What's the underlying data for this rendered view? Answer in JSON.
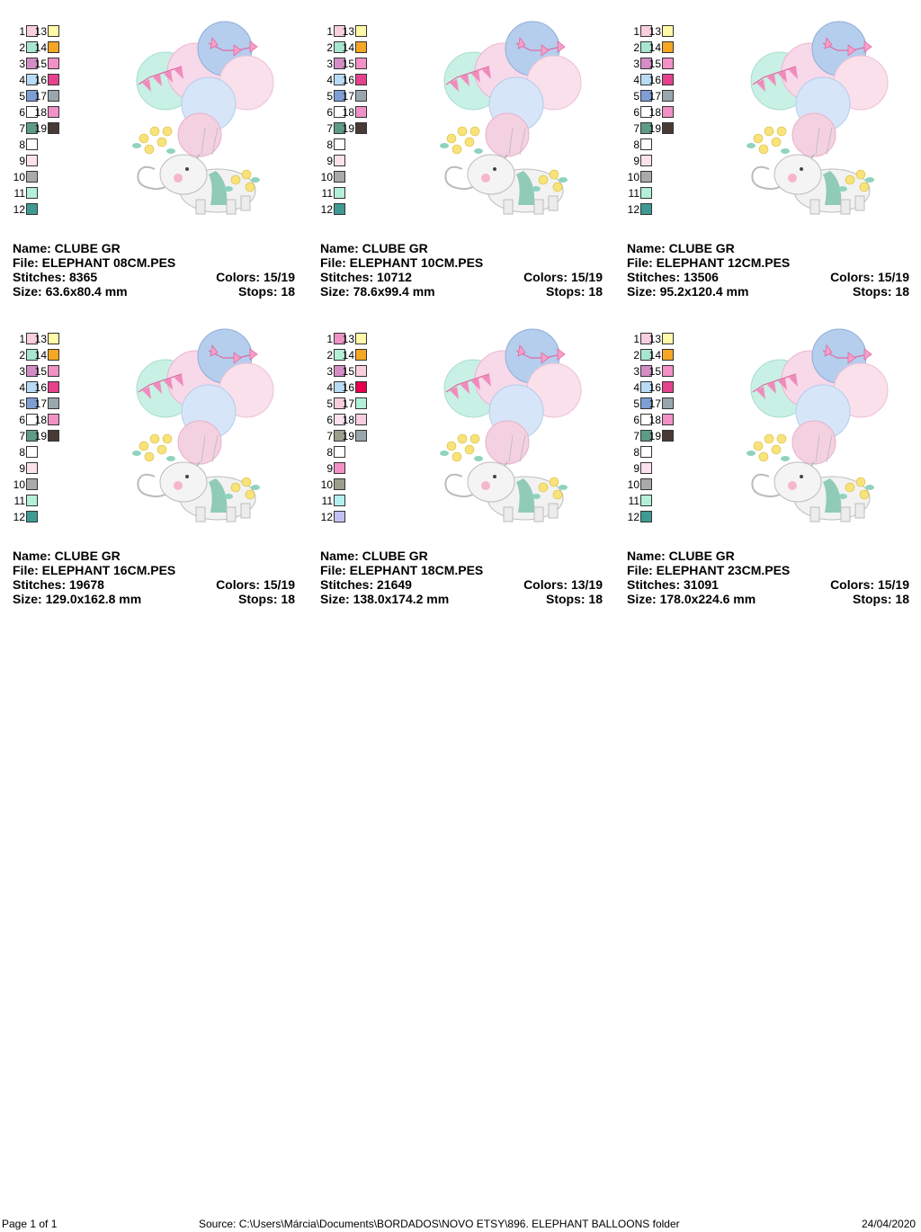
{
  "palette_numbers": [
    "1",
    "2",
    "3",
    "4",
    "5",
    "6",
    "7",
    "8",
    "9",
    "10",
    "11",
    "12",
    "13",
    "14",
    "15",
    "16",
    "17",
    "18",
    "19"
  ],
  "designs": [
    {
      "name_label": "Name: CLUBE GR",
      "file_label": "File: ELEPHANT 08CM.PES",
      "stitches_label": "Stitches: 8365",
      "colors_label": "Colors: 15/19",
      "size_label": "Size: 63.6x80.4 mm",
      "stops_label": "Stops: 18",
      "swatches": [
        "#f9cfe0",
        "#a8e6d4",
        "#d58dc6",
        "#b8dcf5",
        "#7e9fd6",
        "#ffffff",
        "#5e9c86",
        "#ffffff",
        "#fde2ee",
        "#aaaaaa",
        "#b3f0d8",
        "#3d9b93",
        "#fff9a8",
        "#f5a623",
        "#f291c6",
        "#e6418d",
        "#9aa6ad",
        "#f291c6",
        "#4a3a36"
      ]
    },
    {
      "name_label": "Name: CLUBE GR",
      "file_label": "File: ELEPHANT 10CM.PES",
      "stitches_label": "Stitches: 10712",
      "colors_label": "Colors: 15/19",
      "size_label": "Size: 78.6x99.4 mm",
      "stops_label": "Stops: 18",
      "swatches": [
        "#f9cfe0",
        "#a8e6d4",
        "#d58dc6",
        "#b8dcf5",
        "#7e9fd6",
        "#ffffff",
        "#5e9c86",
        "#ffffff",
        "#fde2ee",
        "#aaaaaa",
        "#b3f0d8",
        "#3d9b93",
        "#fff9a8",
        "#f5a623",
        "#f291c6",
        "#e6418d",
        "#9aa6ad",
        "#f291c6",
        "#4a3a36"
      ]
    },
    {
      "name_label": "Name: CLUBE GR",
      "file_label": "File: ELEPHANT 12CM.PES",
      "stitches_label": "Stitches: 13506",
      "colors_label": "Colors: 15/19",
      "size_label": "Size: 95.2x120.4 mm",
      "stops_label": "Stops: 18",
      "swatches": [
        "#f9cfe0",
        "#a8e6d4",
        "#d58dc6",
        "#b8dcf5",
        "#7e9fd6",
        "#ffffff",
        "#5e9c86",
        "#ffffff",
        "#fde2ee",
        "#aaaaaa",
        "#b3f0d8",
        "#3d9b93",
        "#fff9a8",
        "#f5a623",
        "#f291c6",
        "#e6418d",
        "#9aa6ad",
        "#f291c6",
        "#4a3a36"
      ]
    },
    {
      "name_label": "Name: CLUBE GR",
      "file_label": "File: ELEPHANT 16CM.PES",
      "stitches_label": "Stitches: 19678",
      "colors_label": "Colors: 15/19",
      "size_label": "Size: 129.0x162.8 mm",
      "stops_label": "Stops: 18",
      "swatches": [
        "#f9cfe0",
        "#a8e6d4",
        "#d58dc6",
        "#b8dcf5",
        "#7e9fd6",
        "#ffffff",
        "#5e9c86",
        "#ffffff",
        "#fde2ee",
        "#aaaaaa",
        "#b3f0d8",
        "#3d9b93",
        "#fff9a8",
        "#f5a623",
        "#f291c6",
        "#e6418d",
        "#9aa6ad",
        "#f291c6",
        "#4a3a36"
      ]
    },
    {
      "name_label": "Name: CLUBE GR",
      "file_label": "File: ELEPHANT 18CM.PES",
      "stitches_label": "Stitches: 21649",
      "colors_label": "Colors: 13/19",
      "size_label": "Size: 138.0x174.2 mm",
      "stops_label": "Stops: 18",
      "swatches": [
        "#f291c6",
        "#b3f0d8",
        "#d58dc6",
        "#b8dcf5",
        "#f9cfe0",
        "#fde2ee",
        "#9d9d8c",
        "#ffffff",
        "#f291c6",
        "#9d9d8c",
        "#b3f0f0",
        "#c4c0f5",
        "#fff9a8",
        "#f5a623",
        "#f9cfe0",
        "#e6004d",
        "#b3f0d8",
        "#f9cfe0",
        "#9aa6ad"
      ]
    },
    {
      "name_label": "Name: CLUBE GR",
      "file_label": "File: ELEPHANT 23CM.PES",
      "stitches_label": "Stitches: 31091",
      "colors_label": "Colors: 15/19",
      "size_label": "Size: 178.0x224.6 mm",
      "stops_label": "Stops: 18",
      "swatches": [
        "#f9cfe0",
        "#a8e6d4",
        "#d58dc6",
        "#b8dcf5",
        "#7e9fd6",
        "#ffffff",
        "#5e9c86",
        "#ffffff",
        "#fde2ee",
        "#aaaaaa",
        "#b3f0d8",
        "#3d9b93",
        "#fff9a8",
        "#f5a623",
        "#f291c6",
        "#e6418d",
        "#9aa6ad",
        "#f291c6",
        "#4a3a36"
      ]
    }
  ],
  "footer": {
    "page": "Page 1 of 1",
    "source": "Source: C:\\Users\\Márcia\\Documents\\BORDADOS\\NOVO ETSY\\896. ELEPHANT BALLOONS folder",
    "date": "24/04/2020"
  }
}
